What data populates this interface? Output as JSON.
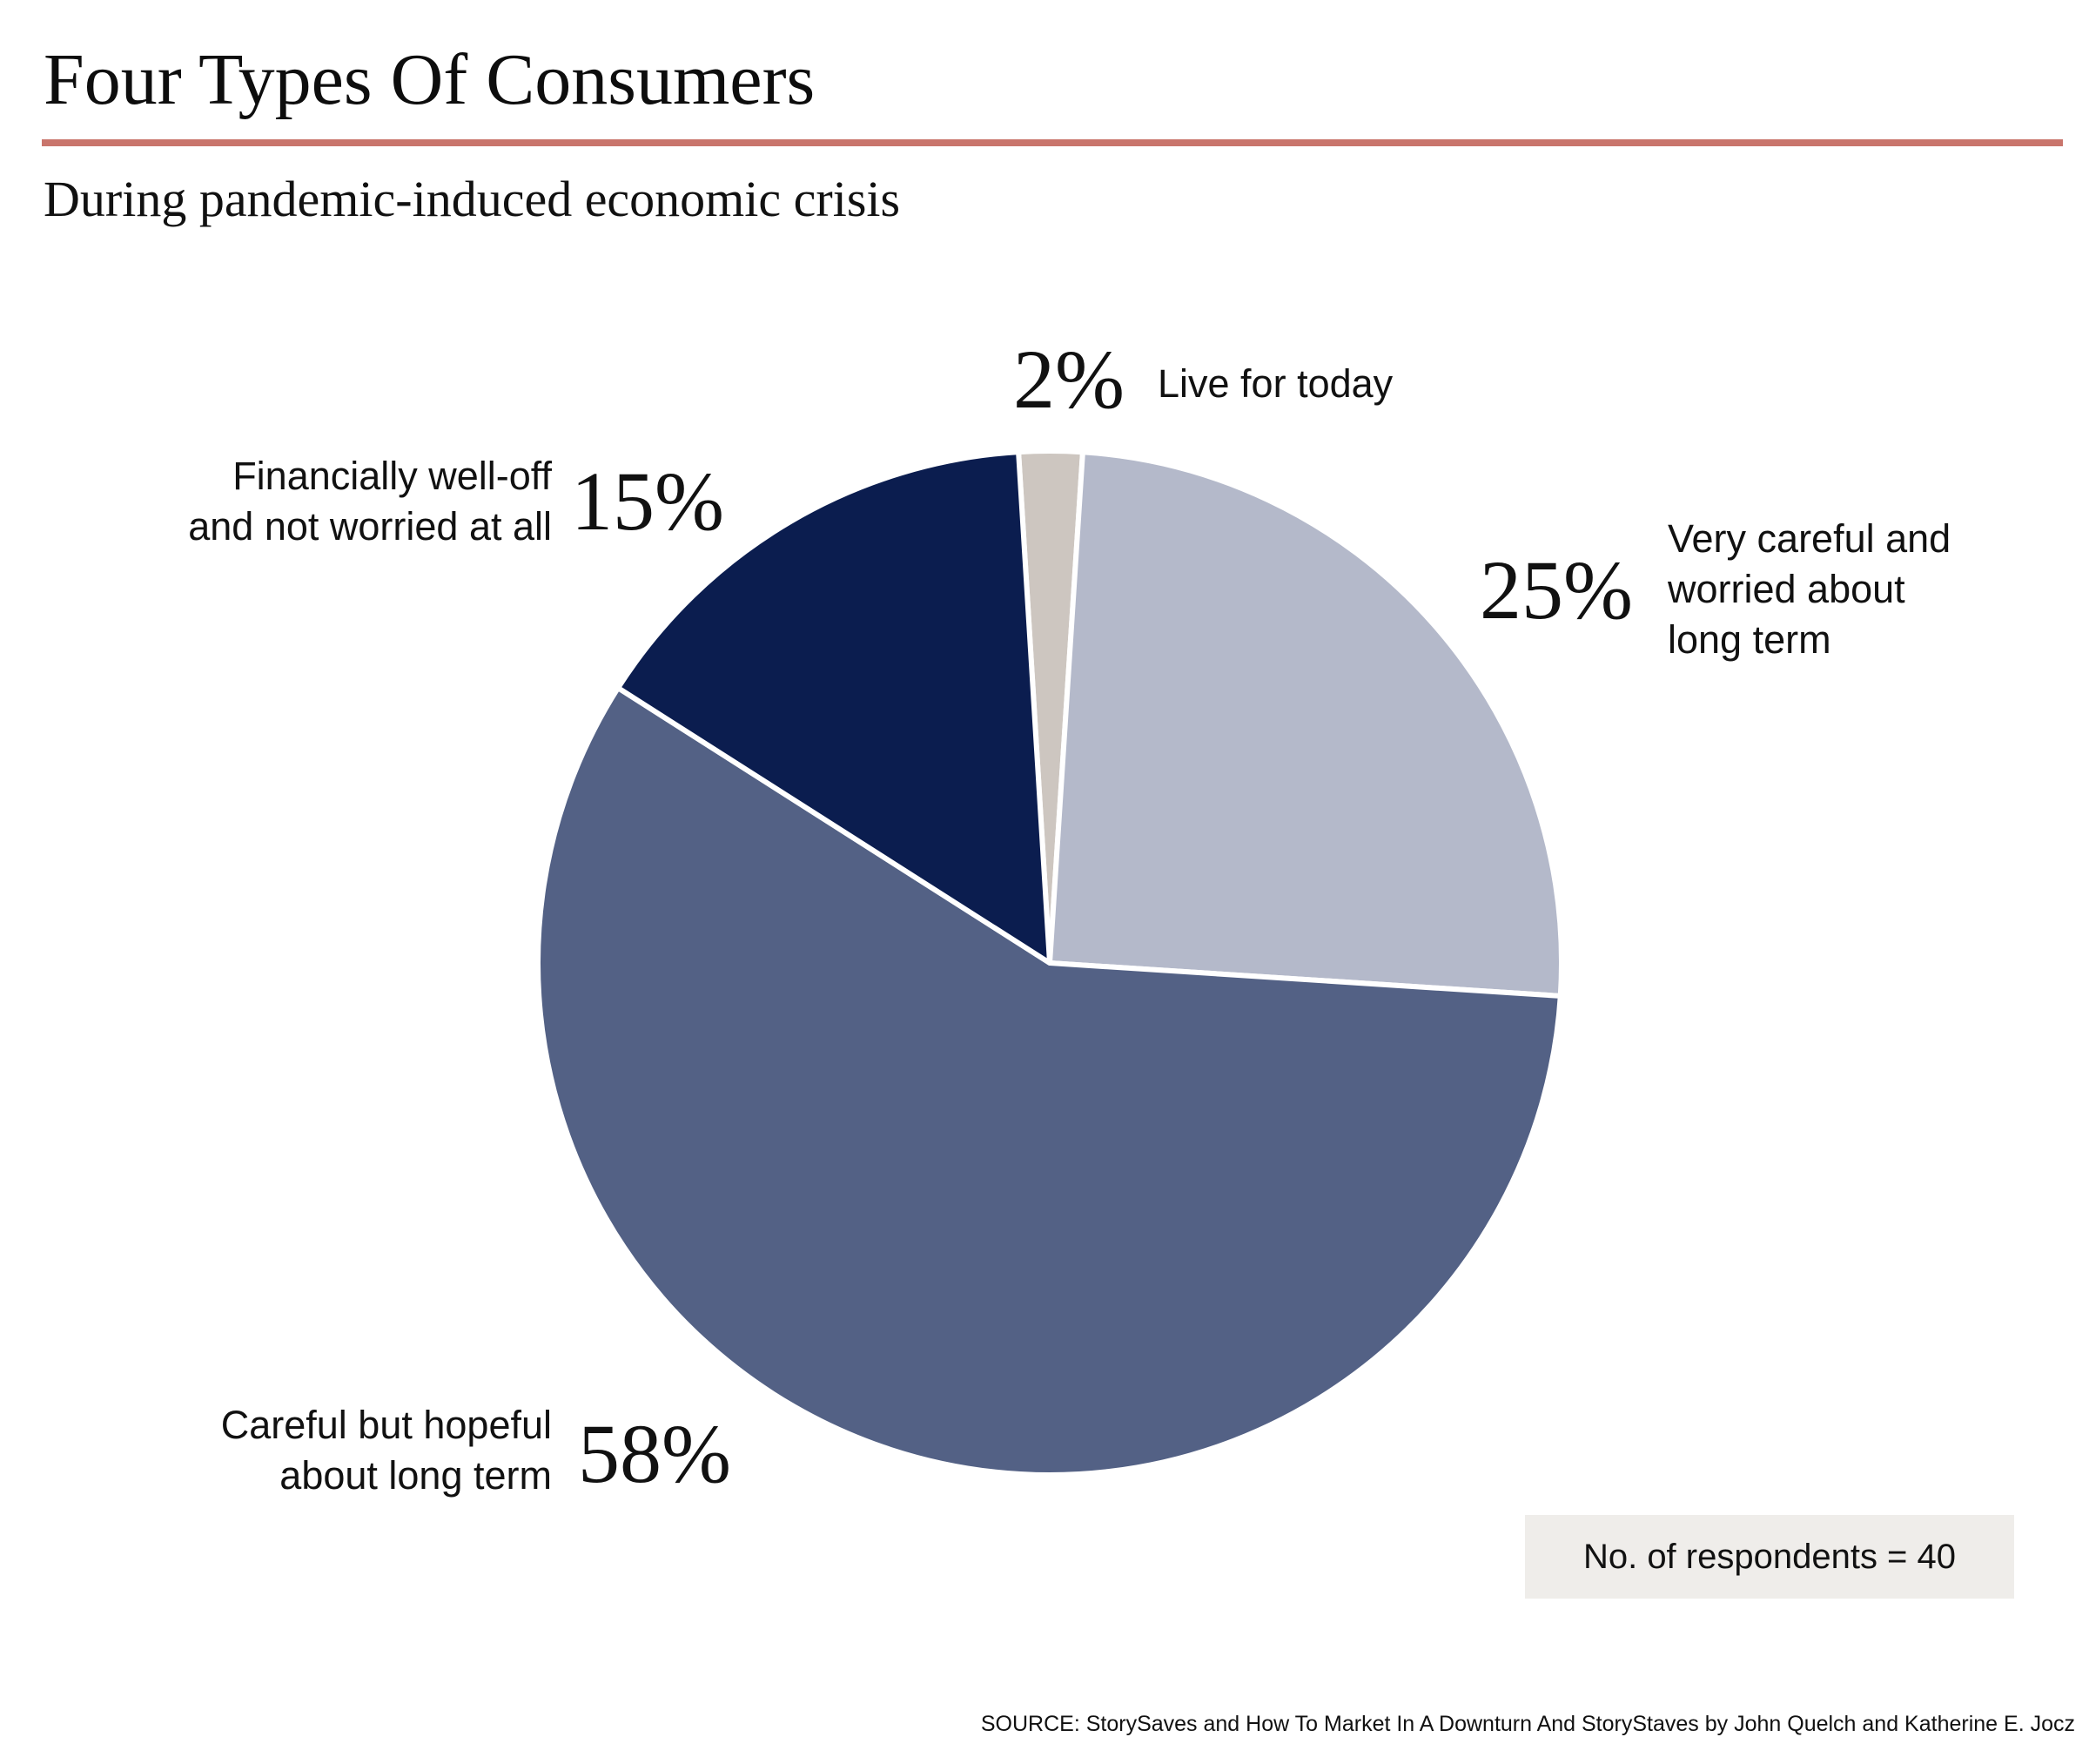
{
  "header": {
    "title": "Four Types Of Consumers",
    "subtitle": "During pandemic-induced economic crisis"
  },
  "colors": {
    "rule": "#c9756c",
    "background": "#ffffff",
    "note_box_bg": "#efedea",
    "slice_edge": "#ffffff"
  },
  "chart_data": {
    "type": "pie",
    "title": "Four Types Of Consumers",
    "subtitle": "During pandemic-induced economic crisis",
    "slices": [
      {
        "label": "Live for today",
        "label_lines": [
          "Live for today"
        ],
        "value": 2,
        "value_label": "2%",
        "color": "#cdc6c0"
      },
      {
        "label": "Very careful and worried about long term",
        "label_lines": [
          "Very careful and",
          "worried about",
          "long term"
        ],
        "value": 25,
        "value_label": "25%",
        "color": "#b4b9ca"
      },
      {
        "label": "Careful but hopeful about long term",
        "label_lines": [
          "Careful but hopeful",
          "about long term"
        ],
        "value": 58,
        "value_label": "58%",
        "color": "#536185"
      },
      {
        "label": "Financially well-off and not worried at all",
        "label_lines": [
          "Financially well-off",
          "and not worried at all"
        ],
        "value": 15,
        "value_label": "15%",
        "color": "#0b1d4f"
      }
    ],
    "start_at": "top",
    "direction": "clockwise",
    "legend": "none"
  },
  "note": "No. of respondents = 40",
  "source": "SOURCE: StorySaves and How To Market In A Downturn And StoryStaves by John Quelch and Katherine E. Jocz"
}
